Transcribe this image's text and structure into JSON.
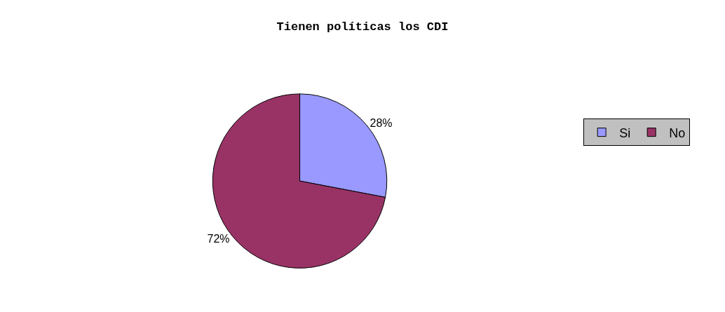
{
  "chart_data": {
    "type": "pie",
    "title": "Tienen políticas los CDI",
    "categories": [
      "Si",
      "No"
    ],
    "values": [
      28,
      72
    ],
    "colors": [
      "#9999ff",
      "#993366"
    ],
    "value_labels": [
      "28%",
      "72%"
    ],
    "legend": "top right"
  }
}
